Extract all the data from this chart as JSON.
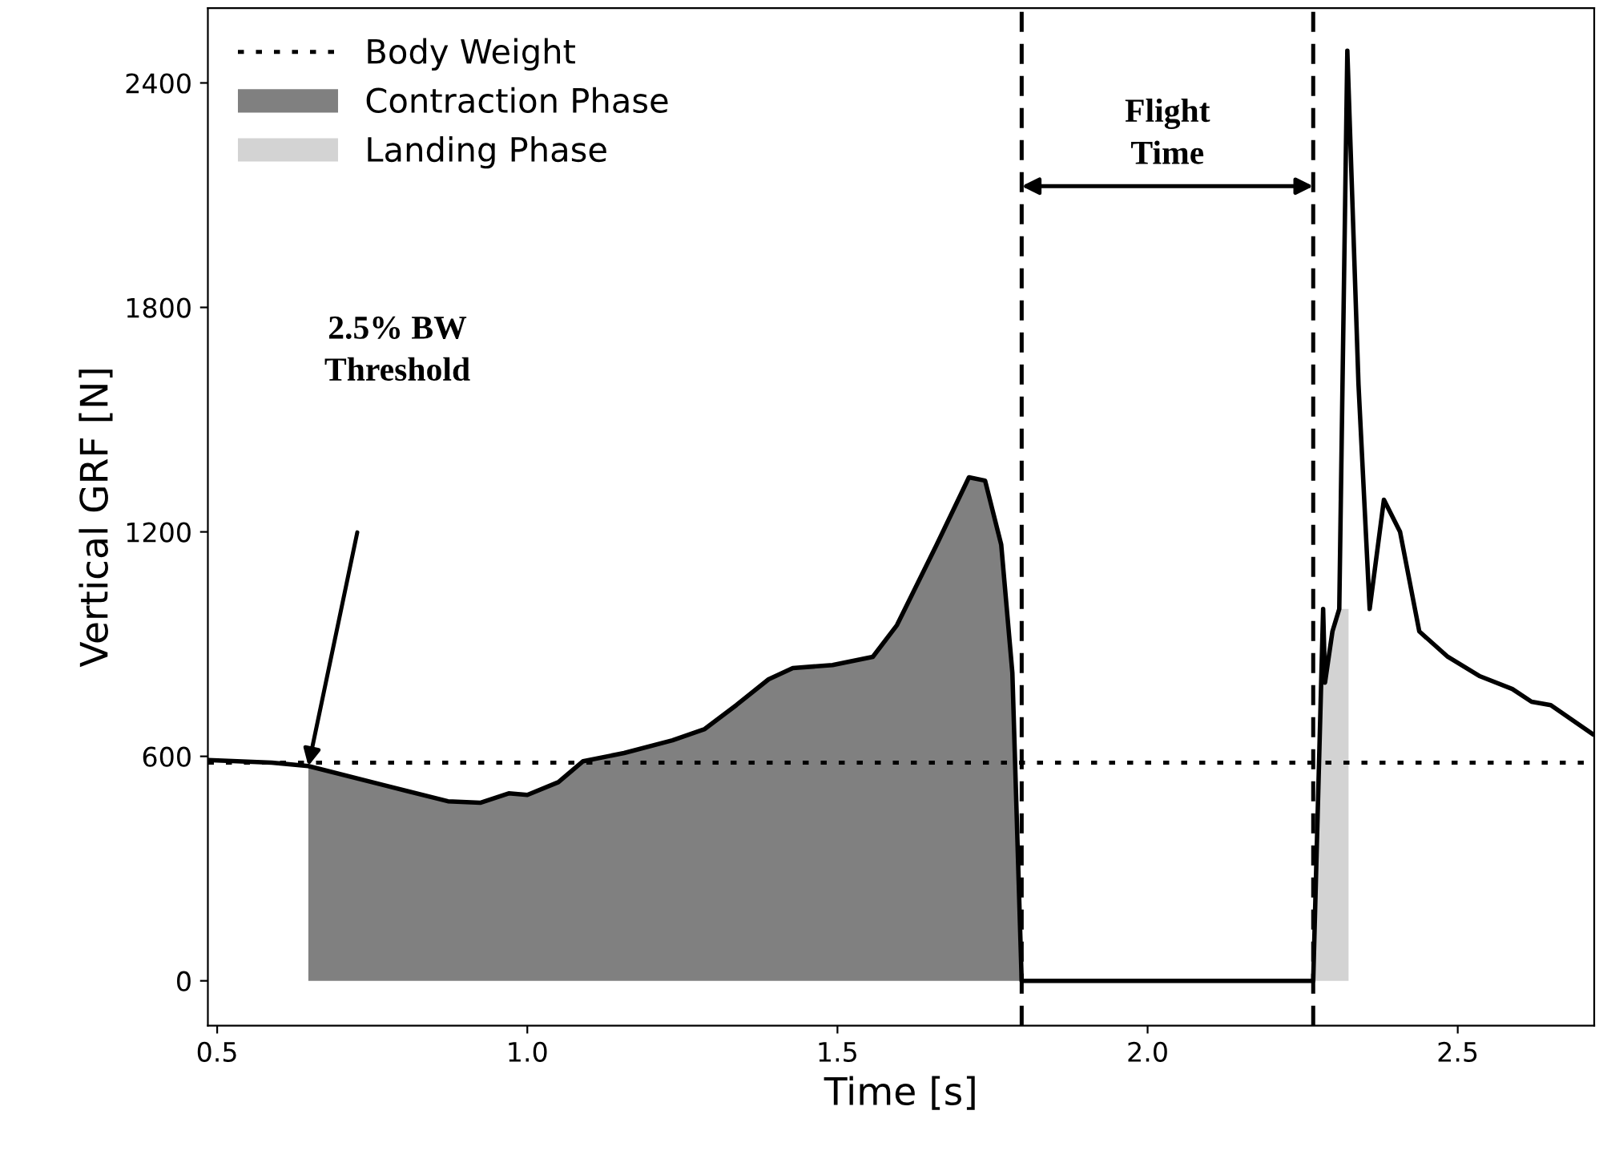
{
  "chart_data": {
    "type": "line",
    "xlabel": "Time [s]",
    "ylabel": "Vertical GRF [N]",
    "xlim": [
      0.485,
      2.72
    ],
    "ylim": [
      -120,
      2600
    ],
    "xticks": [
      0.5,
      {
        "value": 1.0,
        "label": "1.0"
      },
      1.5,
      {
        "value": 2.0,
        "label": "2.0"
      },
      2.5
    ],
    "yticks": [
      0,
      600,
      1200,
      1800,
      2400
    ],
    "grid": false,
    "legend": "top left",
    "series": [
      {
        "name": "Contraction Phase",
        "type": "area",
        "color": "#808080",
        "x": [
          0.647,
          0.769,
          0.872,
          0.924,
          0.97,
          1.0,
          1.05,
          1.09,
          1.156,
          1.234,
          1.286,
          1.337,
          1.389,
          1.428,
          1.492,
          1.557,
          1.596,
          1.66,
          1.712,
          1.738,
          1.764,
          1.782,
          1.797
        ],
        "values": [
          574,
          523,
          480,
          476,
          501,
          497,
          531,
          587,
          609,
          643,
          673,
          737,
          806,
          836,
          844,
          866,
          951,
          1166,
          1346,
          1337,
          1166,
          823,
          0
        ]
      },
      {
        "name": "Landing Phase",
        "type": "area",
        "color": "#d3d3d3",
        "x": [
          2.267,
          2.283,
          2.286,
          2.298,
          2.309,
          2.324
        ],
        "values": [
          0,
          994,
          797,
          934,
          994,
          994
        ]
      },
      {
        "color": "#000000",
        "x": [
          0.485,
          0.588,
          0.647,
          0.769,
          0.872,
          0.924,
          0.97,
          1.0,
          1.05,
          1.09,
          1.156,
          1.234,
          1.286,
          1.337,
          1.389,
          1.428,
          1.492,
          1.557,
          1.596,
          1.66,
          1.712,
          1.738,
          1.764,
          1.782,
          1.797,
          2.267,
          2.283,
          2.286,
          2.298,
          2.309,
          2.322,
          2.34,
          2.358,
          2.381,
          2.407,
          2.438,
          2.484,
          2.536,
          2.588,
          2.619,
          2.65,
          2.717
        ],
        "values": [
          590,
          583,
          574,
          523,
          480,
          476,
          501,
          497,
          531,
          587,
          609,
          643,
          673,
          737,
          806,
          836,
          844,
          866,
          951,
          1166,
          1346,
          1337,
          1166,
          823,
          0,
          0,
          994,
          797,
          934,
          994,
          2486,
          1594,
          994,
          1286,
          1200,
          934,
          866,
          814,
          780,
          746,
          737,
          660
        ]
      }
    ],
    "ref_lines": [
      {
        "axis": "y",
        "value": 583,
        "label": "Body Weight",
        "color": "#000000",
        "line_style": "dotted"
      },
      {
        "axis": "x",
        "value": 1.797,
        "color": "#000000",
        "line_style": "dashed"
      },
      {
        "axis": "x",
        "value": 2.267,
        "color": "#000000",
        "line_style": "dashed"
      }
    ],
    "annotations": [
      "2.5% BW\nThreshold",
      "Flight\nTime"
    ]
  }
}
